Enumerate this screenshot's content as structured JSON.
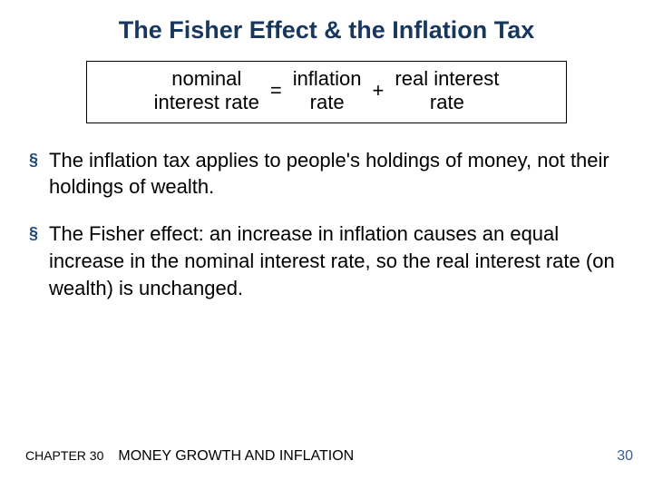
{
  "colors": {
    "title": "#17375e",
    "bullet_marker": "#1f497d",
    "body_text": "#000000",
    "pagenum": "#3a5e8c",
    "box_border": "#000000",
    "background": "#ffffff"
  },
  "typography": {
    "title_fontsize": 27,
    "body_fontsize": 22,
    "footer_ch_fontsize": 14,
    "footer_sub_fontsize": 16,
    "pagenum_fontsize": 16,
    "font_family": "Arial"
  },
  "title": "The Fisher Effect & the Inflation Tax",
  "equation": {
    "term1": "nominal\ninterest rate",
    "op1": "=",
    "term2": "inflation\nrate",
    "op2": "+",
    "term3": "real interest\nrate"
  },
  "bullets": [
    "The inflation tax applies to people's holdings of money, not their holdings of wealth.",
    "The Fisher effect:  an increase in inflation causes an equal increase in the nominal interest rate, so the real interest rate (on wealth) is unchanged."
  ],
  "footer": {
    "chapter": "CHAPTER 30",
    "subtitle": "MONEY GROWTH AND INFLATION"
  },
  "page_number": "30",
  "bullet_glyph": "§"
}
